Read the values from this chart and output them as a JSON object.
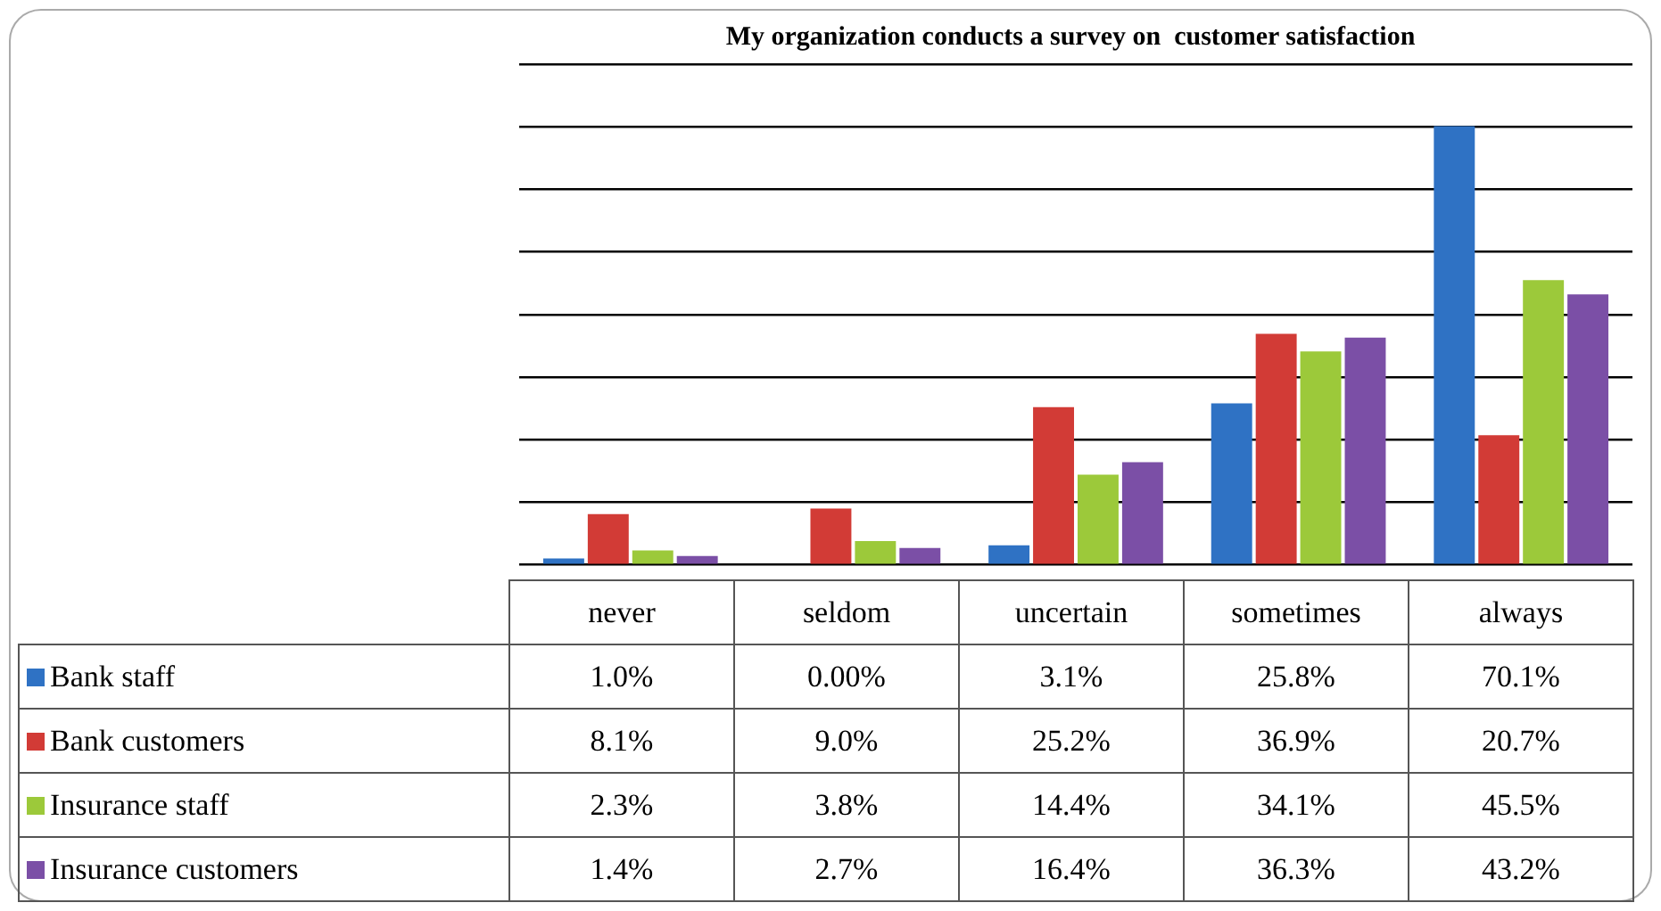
{
  "chart_data": {
    "type": "bar",
    "title": "My organization conducts a survey on  customer satisfaction",
    "categories": [
      "never",
      "seldom",
      "uncertain",
      "sometimes",
      "always"
    ],
    "series": [
      {
        "name": "Bank staff",
        "color": "#2f72c4",
        "values": [
          1.0,
          0.0,
          3.1,
          25.8,
          70.1
        ],
        "value_labels": [
          "1.0%",
          "0.00%",
          "3.1%",
          "25.8%",
          "70.1%"
        ]
      },
      {
        "name": "Bank customers",
        "color": "#d23b36",
        "values": [
          8.1,
          9.0,
          25.2,
          36.9,
          20.7
        ],
        "value_labels": [
          "8.1%",
          "9.0%",
          "25.2%",
          "36.9%",
          "20.7%"
        ]
      },
      {
        "name": "Insurance staff",
        "color": "#9cc93a",
        "values": [
          2.3,
          3.8,
          14.4,
          34.1,
          45.5
        ],
        "value_labels": [
          "2.3%",
          "3.8%",
          "14.4%",
          "34.1%",
          "45.5%"
        ]
      },
      {
        "name": "Insurance customers",
        "color": "#7b4fa6",
        "values": [
          1.4,
          2.7,
          16.4,
          36.3,
          43.2
        ],
        "value_labels": [
          "1.4%",
          "2.7%",
          "16.4%",
          "36.3%",
          "43.2%"
        ]
      }
    ],
    "ylim": [
      0,
      80
    ],
    "yticks": [
      {
        "value": 0,
        "label": null
      },
      {
        "value": 10,
        "label": null
      },
      {
        "value": 20,
        "label": null
      },
      {
        "value": 30,
        "label": null
      },
      {
        "value": 40,
        "label": null
      },
      {
        "value": 50,
        "label": null
      },
      {
        "value": 60,
        "label": null
      },
      {
        "value": 70,
        "label": null
      },
      {
        "value": 80,
        "label": null
      }
    ],
    "grid": "y",
    "legend": "bottom left"
  }
}
